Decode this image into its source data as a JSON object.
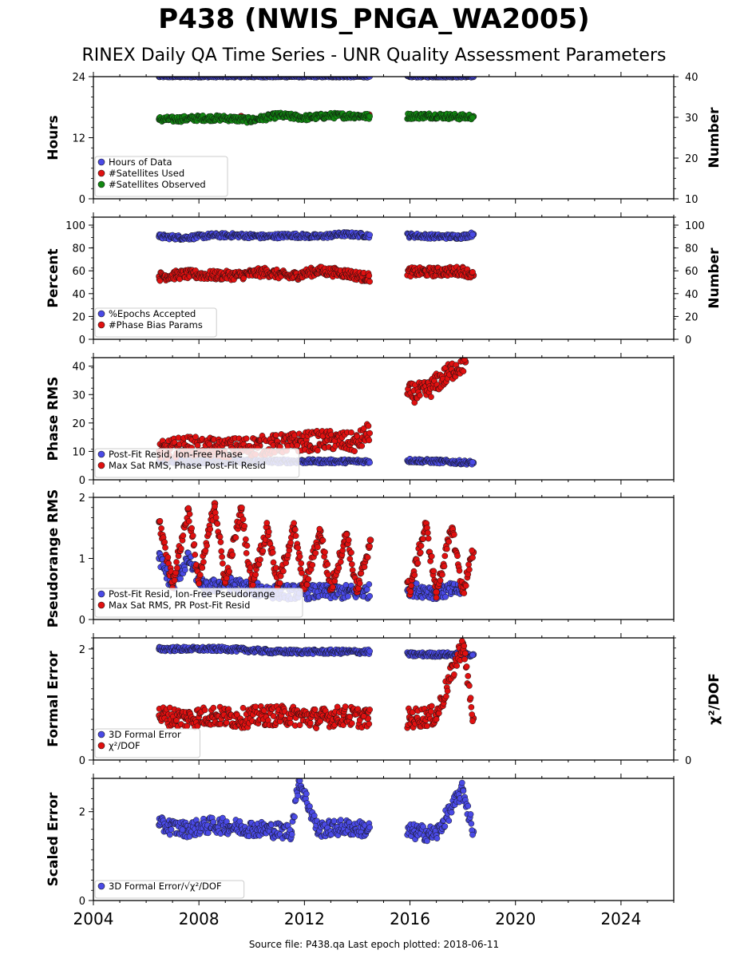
{
  "title": "P438 (NWIS_PNGA_WA2005)",
  "subtitle": "RINEX Daily QA Time Series - UNR Quality Assessment Parameters",
  "footer": "Source file: P438.qa Last epoch plotted: 2018-06-11",
  "colors": {
    "blue": "#4a4ae6",
    "red": "#e01010",
    "green": "#118811",
    "navy": "#16165a"
  },
  "chart_data": [
    {
      "type": "scatter",
      "ylabel": "Hours",
      "y2label": "Number",
      "xlim": [
        2004,
        2026
      ],
      "ylim": [
        0,
        24
      ],
      "yticks": [
        0,
        12,
        24
      ],
      "y2lim": [
        10,
        40
      ],
      "y2ticks": [
        10,
        20,
        30,
        40
      ],
      "legend": "lower-left",
      "series": [
        {
          "name": "Hours of Data",
          "color": "#4a4ae6",
          "axis": "left",
          "x": [
            2006.5,
            2008.0,
            2010.0,
            2012.0,
            2014.4,
            2016.0,
            2017.0,
            2018.4
          ],
          "y": [
            24,
            24,
            24,
            24,
            24,
            24,
            24,
            24
          ]
        },
        {
          "name": "#Satellites Used",
          "color": "#e01010",
          "axis": "left",
          "x": [
            2009.6,
            2014.45
          ],
          "y": [
            16.2,
            16.5
          ]
        },
        {
          "name": "#Satellites Observed",
          "color": "#118811",
          "axis": "right",
          "x": [
            2006.5,
            2007.0,
            2008.0,
            2009.0,
            2010.0,
            2011.0,
            2012.0,
            2013.0,
            2014.0,
            2014.4,
            2016.0,
            2017.0,
            2018.0,
            2018.4
          ],
          "y": [
            29.5,
            29.5,
            29.8,
            29.8,
            29.3,
            30.5,
            29.9,
            30.4,
            30.4,
            30.2,
            30.3,
            30.4,
            30.1,
            30.2
          ]
        }
      ]
    },
    {
      "type": "scatter",
      "ylabel": "Percent",
      "y2label": "Number",
      "xlim": [
        2004,
        2026
      ],
      "ylim": [
        0,
        107
      ],
      "yticks": [
        0,
        20,
        40,
        60,
        80,
        100
      ],
      "y2lim": [
        0,
        107
      ],
      "y2ticks": [
        0,
        20,
        40,
        60,
        80,
        100
      ],
      "legend": "lower-left",
      "series": [
        {
          "name": "%Epochs Accepted",
          "color": "#4a4ae6",
          "axis": "left",
          "x": [
            2006.5,
            2007.5,
            2008.5,
            2009.5,
            2010.5,
            2011.5,
            2012.5,
            2013.5,
            2014.4,
            2016.0,
            2017.0,
            2018.0,
            2018.4
          ],
          "y": [
            90,
            89,
            91,
            91,
            90,
            91,
            90,
            92,
            91,
            91,
            90,
            90,
            92
          ]
        },
        {
          "name": "#Phase Bias Params",
          "color": "#e01010",
          "axis": "right",
          "x": [
            2006.5,
            2007.5,
            2008.5,
            2009.5,
            2010.5,
            2011.5,
            2012.5,
            2013.5,
            2014.4,
            2016.0,
            2017.0,
            2018.0,
            2018.4
          ],
          "y": [
            55,
            57,
            56,
            56,
            59,
            55,
            60,
            58,
            54,
            59,
            59,
            60,
            56
          ]
        }
      ]
    },
    {
      "type": "scatter",
      "ylabel": "Phase RMS",
      "xlim": [
        2004,
        2026
      ],
      "ylim": [
        0,
        43
      ],
      "yticks": [
        0,
        10,
        20,
        30,
        40
      ],
      "legend": "lower-left",
      "series": [
        {
          "name": "Post-Fit Resid, Ion-Free Phase",
          "color": "#4a4ae6",
          "x": [
            2006.5,
            2008.0,
            2010.0,
            2012.0,
            2014.4,
            2016.0,
            2017.0,
            2018.4
          ],
          "y": [
            6.5,
            6.5,
            6.5,
            6.5,
            6.5,
            6.8,
            6.5,
            6.0
          ]
        },
        {
          "name": "Max Sat RMS, Phase Post-Fit Resid",
          "color": "#e01010",
          "x": [
            2006.5,
            2007.5,
            2008.8,
            2010.3,
            2011.5,
            2012.8,
            2014.0,
            2016.0,
            2016.6,
            2017.6,
            2018.1
          ],
          "y": [
            10,
            12,
            11,
            12,
            13,
            14,
            13,
            30.5,
            31,
            38.5,
            41.5
          ]
        }
      ]
    },
    {
      "type": "scatter",
      "ylabel": "Pseudorange RMS",
      "xlim": [
        2004,
        2026
      ],
      "ylim": [
        0,
        2
      ],
      "yticks": [
        0,
        1,
        2
      ],
      "legend": "lower-left",
      "series": [
        {
          "name": "Post-Fit Resid, Ion-Free Pseudorange",
          "color": "#4a4ae6",
          "x": [
            2006.5,
            2007.0,
            2007.6,
            2008.2,
            2009.0,
            2010.0,
            2011.0,
            2012.0,
            2013.0,
            2014.0,
            2016.0,
            2017.0,
            2018.0
          ],
          "y": [
            1.0,
            0.55,
            1.0,
            0.5,
            0.6,
            0.5,
            0.45,
            0.45,
            0.45,
            0.45,
            0.5,
            0.45,
            0.5
          ]
        },
        {
          "name": "Max Sat RMS, PR Post-Fit Resid",
          "color": "#e01010",
          "x": [
            2006.5,
            2007.0,
            2007.6,
            2008.0,
            2008.6,
            2009.0,
            2009.6,
            2010.0,
            2010.6,
            2011.0,
            2011.6,
            2012.0,
            2012.6,
            2013.0,
            2013.6,
            2014.0,
            2014.5,
            2016.0,
            2016.6,
            2017.0,
            2017.6,
            2018.0,
            2018.4
          ],
          "y": [
            1.6,
            0.6,
            1.8,
            0.6,
            1.9,
            0.6,
            1.8,
            0.6,
            1.5,
            0.55,
            1.5,
            0.5,
            1.45,
            0.5,
            1.4,
            0.45,
            1.3,
            0.5,
            1.55,
            0.45,
            1.5,
            0.45,
            1.1
          ]
        }
      ]
    },
    {
      "type": "scatter",
      "ylabel": "Formal Error",
      "y2label": "χ²/DOF",
      "xlim": [
        2004,
        2026
      ],
      "ylim": [
        0,
        2.2
      ],
      "yticks": [
        0,
        2
      ],
      "y2ticks": [
        0
      ],
      "legend": "lower-left",
      "series": [
        {
          "name": "3D Formal Error",
          "color": "#4a4ae6",
          "x": [
            2006.5,
            2007.5,
            2009.0,
            2011.0,
            2012.5,
            2014.4,
            2016.0,
            2017.0,
            2018.4
          ],
          "y": [
            2.0,
            2.0,
            2.0,
            1.95,
            1.95,
            1.95,
            1.9,
            1.9,
            1.9
          ]
        },
        {
          "name": "χ²/DOF",
          "color": "#e01010",
          "x": [
            2006.5,
            2007.5,
            2008.5,
            2009.5,
            2010.5,
            2011.5,
            2012.5,
            2013.5,
            2014.4,
            2016.0,
            2017.0,
            2018.0,
            2018.4
          ],
          "y": [
            0.8,
            0.75,
            0.8,
            0.75,
            0.8,
            0.8,
            0.75,
            0.8,
            0.75,
            0.75,
            0.8,
            2.1,
            0.75
          ]
        }
      ]
    },
    {
      "type": "scatter",
      "ylabel": "Scaled Error",
      "xlim": [
        2004,
        2026
      ],
      "xticks": [
        2004,
        2008,
        2012,
        2016,
        2020,
        2024
      ],
      "ylim": [
        0,
        2.75
      ],
      "yticks": [
        0,
        2
      ],
      "legend": "lower-left",
      "series": [
        {
          "name": "3D Formal Error/√χ²/DOF",
          "color": "#4a4ae6",
          "x": [
            2006.5,
            2007.5,
            2008.5,
            2009.5,
            2010.5,
            2011.5,
            2011.8,
            2012.5,
            2013.5,
            2014.4,
            2016.0,
            2017.0,
            2018.0,
            2018.4
          ],
          "y": [
            1.7,
            1.6,
            1.7,
            1.65,
            1.6,
            1.55,
            2.7,
            1.6,
            1.65,
            1.6,
            1.55,
            1.5,
            2.5,
            1.55
          ]
        }
      ]
    }
  ]
}
